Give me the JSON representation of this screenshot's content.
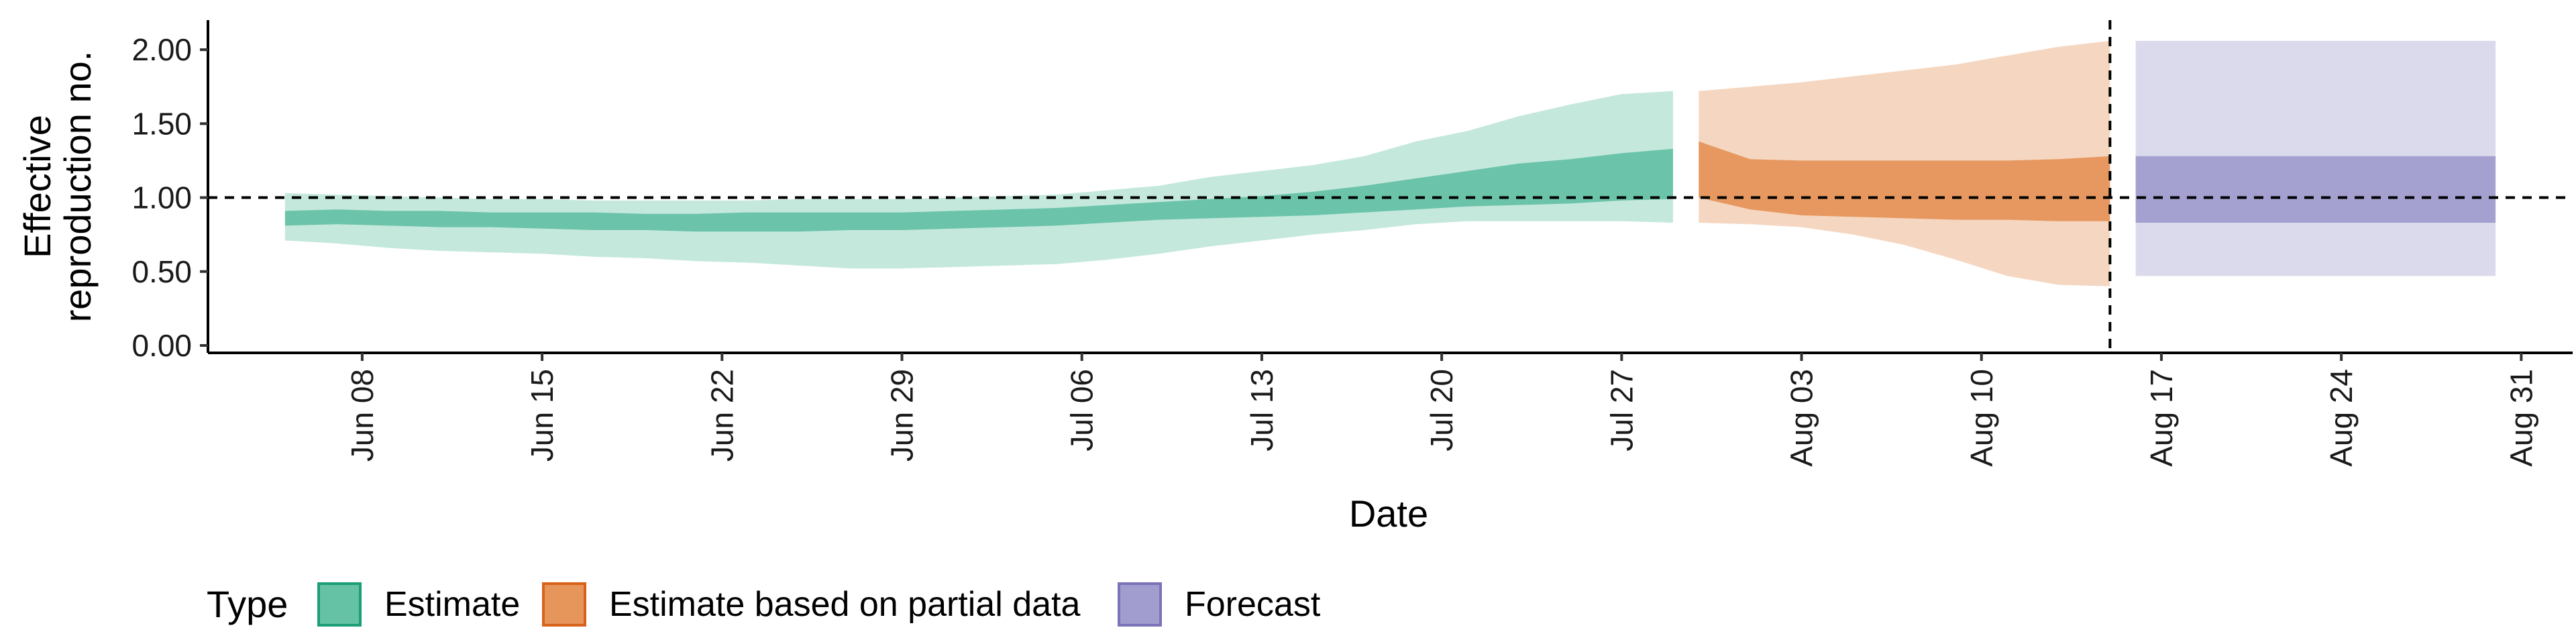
{
  "chart_data": {
    "type": "area",
    "xlabel": "Date",
    "ylabel": "Effective\nreproduction no.",
    "ylim": [
      -0.05,
      2.2
    ],
    "xlim": [
      "2020-06-02",
      "2020-09-02"
    ],
    "y_ticks": [
      0.0,
      0.5,
      1.0,
      1.5,
      2.0
    ],
    "y_tick_labels": [
      "0.00",
      "0.50",
      "1.00",
      "1.50",
      "2.00"
    ],
    "x_ticks": [
      "2020-06-08",
      "2020-06-15",
      "2020-06-22",
      "2020-06-29",
      "2020-07-06",
      "2020-07-13",
      "2020-07-20",
      "2020-07-27",
      "2020-08-03",
      "2020-08-10",
      "2020-08-17",
      "2020-08-24",
      "2020-08-31"
    ],
    "x_tick_labels": [
      "Jun 08",
      "Jun 15",
      "Jun 22",
      "Jun 29",
      "Jul 06",
      "Jul 13",
      "Jul 20",
      "Jul 27",
      "Aug 03",
      "Aug 10",
      "Aug 17",
      "Aug 24",
      "Aug 31"
    ],
    "hline": 1.0,
    "vline": "2020-08-15",
    "grid": false,
    "legend_position": "bottom-left",
    "legend_title": "Type",
    "series": [
      {
        "name": "Estimate",
        "color": "#66c2a5",
        "x": [
          "2020-06-05",
          "2020-06-07",
          "2020-06-09",
          "2020-06-11",
          "2020-06-13",
          "2020-06-15",
          "2020-06-17",
          "2020-06-19",
          "2020-06-21",
          "2020-06-23",
          "2020-06-25",
          "2020-06-27",
          "2020-06-29",
          "2020-07-01",
          "2020-07-03",
          "2020-07-05",
          "2020-07-07",
          "2020-07-09",
          "2020-07-11",
          "2020-07-13",
          "2020-07-15",
          "2020-07-17",
          "2020-07-19",
          "2020-07-21",
          "2020-07-23",
          "2020-07-25",
          "2020-07-27",
          "2020-07-29"
        ],
        "upper90": [
          1.03,
          1.02,
          1.01,
          1.0,
          0.99,
          0.99,
          0.98,
          0.98,
          0.98,
          0.98,
          0.99,
          0.99,
          0.99,
          1.0,
          1.01,
          1.02,
          1.05,
          1.08,
          1.14,
          1.18,
          1.22,
          1.28,
          1.38,
          1.45,
          1.55,
          1.63,
          1.7,
          1.72
        ],
        "upper50": [
          0.91,
          0.92,
          0.91,
          0.91,
          0.9,
          0.9,
          0.9,
          0.89,
          0.89,
          0.9,
          0.9,
          0.9,
          0.9,
          0.91,
          0.92,
          0.93,
          0.95,
          0.97,
          0.99,
          1.01,
          1.04,
          1.08,
          1.13,
          1.18,
          1.23,
          1.26,
          1.3,
          1.33
        ],
        "lower50": [
          0.81,
          0.82,
          0.81,
          0.8,
          0.8,
          0.79,
          0.78,
          0.78,
          0.77,
          0.77,
          0.77,
          0.78,
          0.78,
          0.79,
          0.8,
          0.81,
          0.83,
          0.85,
          0.86,
          0.87,
          0.88,
          0.9,
          0.92,
          0.94,
          0.95,
          0.96,
          0.98,
          0.99
        ],
        "lower90": [
          0.71,
          0.69,
          0.66,
          0.64,
          0.63,
          0.62,
          0.6,
          0.59,
          0.57,
          0.56,
          0.54,
          0.52,
          0.52,
          0.53,
          0.54,
          0.55,
          0.58,
          0.62,
          0.67,
          0.71,
          0.75,
          0.78,
          0.82,
          0.84,
          0.84,
          0.84,
          0.84,
          0.83
        ]
      },
      {
        "name": "Estimate based on partial data",
        "color": "#e6955b",
        "x": [
          "2020-07-30",
          "2020-08-01",
          "2020-08-03",
          "2020-08-05",
          "2020-08-07",
          "2020-08-09",
          "2020-08-11",
          "2020-08-13",
          "2020-08-15"
        ],
        "upper90": [
          1.72,
          1.75,
          1.78,
          1.82,
          1.86,
          1.9,
          1.96,
          2.02,
          2.06
        ],
        "upper50": [
          1.38,
          1.26,
          1.25,
          1.25,
          1.25,
          1.25,
          1.25,
          1.26,
          1.28
        ],
        "lower50": [
          1.0,
          0.92,
          0.88,
          0.87,
          0.86,
          0.85,
          0.85,
          0.84,
          0.84
        ],
        "lower90": [
          0.83,
          0.82,
          0.8,
          0.75,
          0.68,
          0.58,
          0.47,
          0.41,
          0.4
        ]
      },
      {
        "name": "Forecast",
        "color": "#a19dce",
        "x": [
          "2020-08-16",
          "2020-08-30"
        ],
        "upper90": [
          2.06,
          2.06
        ],
        "upper50": [
          1.28,
          1.28
        ],
        "lower50": [
          0.83,
          0.83
        ],
        "lower90": [
          0.47,
          0.47
        ]
      }
    ]
  }
}
